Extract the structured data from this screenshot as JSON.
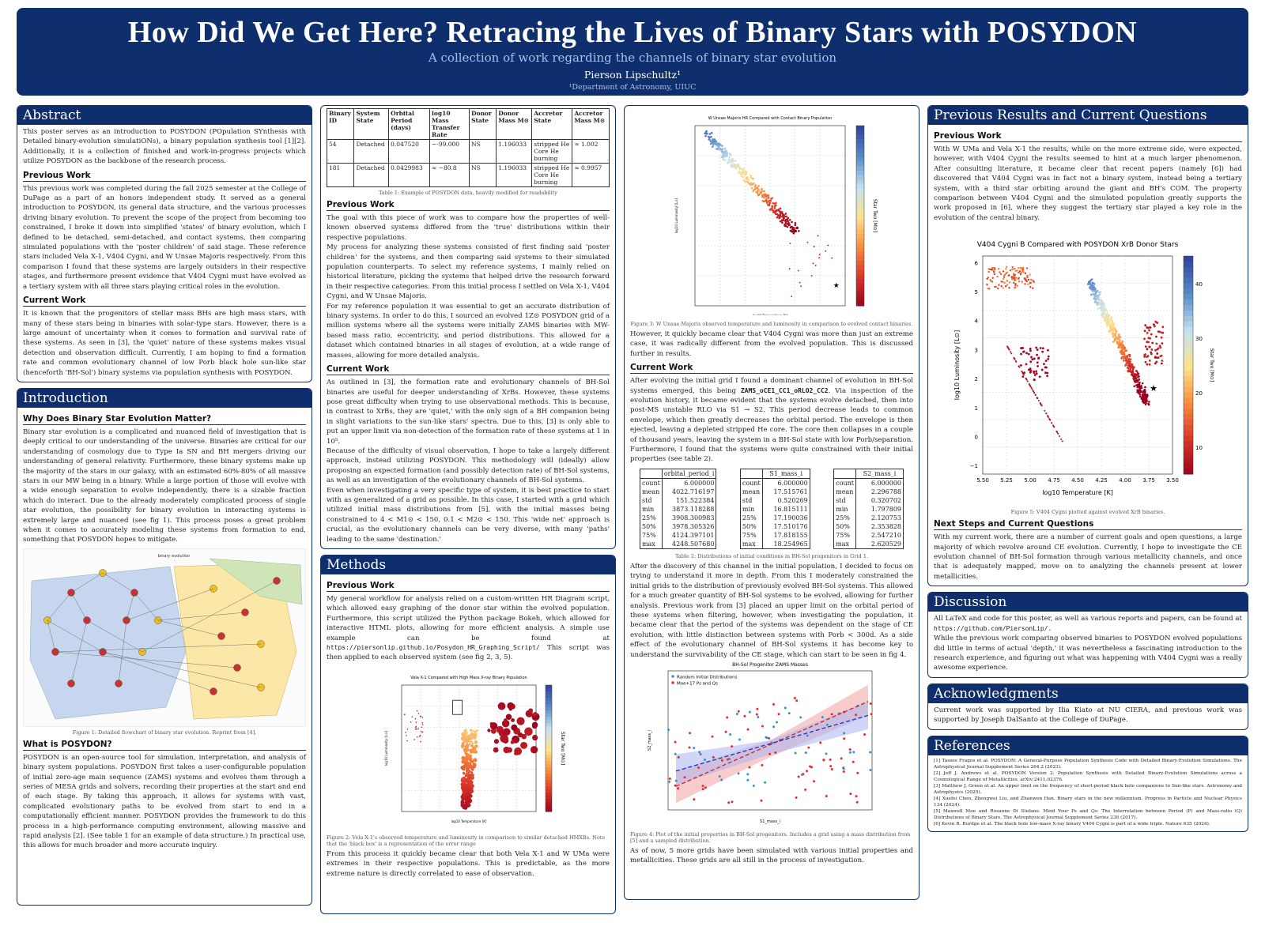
{
  "header": {
    "title": "How Did We Get Here? Retracing the Lives of Binary Stars with POSYDON",
    "subtitle": "A collection of work regarding the channels of binary star evolution",
    "author": "Pierson Lipschultz¹",
    "affiliation": "¹Department of Astronomy, UIUC"
  },
  "abstract": {
    "title": "Abstract",
    "intro": "This poster serves as an introduction to POSYDON (POpulation SYnthesis with Detailed binary-evolution simulatiONs), a binary population synthesis tool [1][2]. Additionally, it is a collection of finished and work-in-progress projects which utilize POSYDON as the backbone of the research process.",
    "prev_h": "Previous Work",
    "prev": "This previous work was completed during the fall 2025 semester at the College of DuPage as a part of an honors independent study. It served as a general introduction to POSYDON, its general data structure, and the various processes driving binary evolution. To prevent the scope of the project from becoming too constrained, I broke it down into simplified 'states' of binary evolution, which I defined to be detached, semi-detached, and contact systems, then comparing simulated populations with the 'poster children' of said stage. These reference stars included Vela X-1, V404 Cygni, and W Unsae Majoris respectively. From this comparison I found that these systems are largely outsiders in their respective stages, and furthermore present evidence that V404 Cygni must have evolved as a tertiary system with all three stars playing critical roles in the evolution.",
    "cur_h": "Current Work",
    "cur": "It is known that the progenitors of stellar mass BHs are high mass stars, with many of these stars being in binaries with solar-type stars. However, there is a large amount of uncertainty when it comes to formation and survival rate of these systems. As seen in [3], the 'quiet' nature of these systems makes visual detection and observation difficult. Currently, I am hoping to find a formation rate and common evolutionary channel of low Porb black hole sun-like star (henceforth 'BH-Sol') binary systems via population synthesis with POSYDON."
  },
  "intro": {
    "title": "Introduction",
    "h1": "Why Does Binary Star Evolution Matter?",
    "p1": "Binary star evolution is a complicated and nuanced field of investigation that is deeply critical to our understanding of the universe. Binaries are critical for our understanding of cosmology due to Type Ia SN and BH mergers driving our understanding of general relativity. Furthermore, these binary systems make up the majority of the stars in our galaxy, with an estimated 60%-80% of all massive stars in our MW being in a binary. While a large portion of those will evolve with a wide enough separation to evolve independently, there is a sizable fraction which do interact. Due to the already moderately complicated process of single star evolution, the possibility for binary evolution in interacting systems is extremely large and nuanced (see fig 1). This process poses a great problem when it comes to accurately modeling these systems from formation to end, something that POSYDON hopes to mitigate.",
    "fig1_title": "binary evolution",
    "fig1_cap": "Figure 1: Detailed flowchart of binary star evolution. Reprint from [4].",
    "h2": "What is POSYDON?",
    "p2": "POSYDON is an open-source tool for simulation, interpretation, and analysis of binary system populations. POSYDON first takes a user-configurable population of initial zero-age main sequence (ZAMS) systems and evolves them through a series of MESA grids and solvers, recording their properties at the start and end of each stage. By taking this approach, it allows for systems with vast, complicated evolutionary paths to be evolved from start to end in a computationally efficient manner. POSYDON provides the framework to do this process in a high-performance computing environment, allowing massive and rapid analysis [2]. (See table 1 for an example of data structure.) In practical use, this allows for much broader and more accurate inquiry."
  },
  "table1": {
    "headers": [
      "Binary ID",
      "System State",
      "Orbital Period (days)",
      "log10 Mass Transfer Rate",
      "Donor State",
      "Donor Mass M⊙",
      "Accretor State",
      "Accretor Mass M⊙"
    ],
    "rows": [
      [
        "54",
        "Detached",
        "0.047520",
        "~-99.000",
        "NS",
        "1.196033",
        "stripped He Core He burning",
        "≈ 1.002"
      ],
      [
        "181",
        "Detached",
        "0.0429983",
        "≈ −80.8",
        "NS",
        "1.196033",
        "stripped He Core He burning",
        "≈ 0.9957"
      ]
    ],
    "caption": "Table 1: Example of POSYDON data, heavily modified for readability"
  },
  "col2": {
    "prev_h": "Previous Work",
    "prev1": "The goal with this piece of work was to compare how the properties of well-known observed systems differed from the 'true' distributions within their respective populations.",
    "prev2": "My process for analyzing these systems consisted of first finding said 'poster children' for the systems, and then comparing said systems to their simulated population counterparts. To select my reference systems, I mainly relied on historical literature, picking the systems that helped drive the research forward in their respective categories. From this initial process I settled on Vela X-1, V404 Cygni, and W Unsae Majoris.",
    "prev3": "For my reference population it was essential to get an accurate distribution of binary systems. In order to do this, I sourced an evolved 1Z⊙ POSYDON grid of a million systems where all the systems were initially ZAMS binaries with MW-based mass ratio, eccentricity, and period distributions. This allowed for a dataset which contained binaries in all stages of evolution, at a wide range of masses, allowing for more detailed analysis.",
    "cur_h": "Current Work",
    "cur1": "As outlined in [3], the formation rate and evolutionary channels of BH-Sol binaries are useful for deeper understanding of XrBs. However, these systems pose great difficulty when trying to use observational methods. This is because, in contrast to XrBs, they are 'quiet,' with the only sign of a BH companion being in slight variations to the sun-like stars' spectra. Due to this, [3] is only able to put an upper limit via non-detection of the formation rate of these systems at 1 in 10⁵.",
    "cur2": "Because of the difficulty of visual observation, I hope to take a largely different approach, instead utilizing POSYDON. This methodology will (ideally) allow proposing an expected formation (and possibly detection rate) of BH-Sol systems, as well as an investigation of the evolutionary channels of BH-Sol systems.",
    "cur3": "Even when investigating a very specific type of system, it is best practice to start with as generalized of a grid as possible. In this case, I started with a grid which utilized initial mass distributions from [5], with the initial masses being constrained to 4 < M1⊙ < 150, 0.1 < M2⊙ < 150. This 'wide net' approach is crucial, as the evolutionary channels can be very diverse, with many 'paths' leading to the same 'destination.'"
  },
  "methods": {
    "title": "Methods",
    "prev_h": "Previous Work",
    "p1a": "My general workflow for analysis relied on a custom-written HR Diagram script, which allowed easy graphing of the donor star within the evolved population. Furthermore, this script utilized the Python package Bokeh, which allowed for interactive HTML plots, allowing for more efficient analysis. A simple use example can be found at",
    "url": "https://piersonlip.github.io/Posydon_HR_Graphing_Script/",
    "p1b": "This script was then applied to each observed system (see fig 2, 3, 5).",
    "fig2_title": "Vela X-1 Compared with High Mass X-ray Binary Population",
    "fig2_cap": "Figure 2: Vela X-1's observed temperature and luminosity in comparison to similar detached HMXBs. Note that the 'black box' is a representation of the error range",
    "p2": "From this process it quickly became clear that both Vela X-1 and W UMa were extremes in their respective populations. This is predictable, as the more extreme nature is directly correlated to ease of observation."
  },
  "col3": {
    "fig3_title": "W Unsae Majoris HR Compared with Contact Binary Population",
    "fig3_cap": "Figure 3: W Unsae Majoris observed temperature and luminosity in comparison to evolved contact binaries.",
    "p1": "However, it quickly became clear that V404 Cygni was more than just an extreme case, it was radically different from the evolved population. This is discussed further in results.",
    "cur_h": "Current Work",
    "p2a": "After evolving the initial grid I found a dominant channel of evolution in BH-Sol systems emerged, this being",
    "channel": "ZAMS_oCE1_CC1_oRLO2_CC2",
    "p2b": ". Via inspection of the evolution history, it became evident that the systems evolve detached, then into post-MS unstable RLO via S1 → S2. This period decrease leads to common envelope, which then greatly decreases the orbital period. The envelope is then ejected, leaving a depleted stripped He core. The core then collapses in a couple of thousand years, leaving the system in a BH-Sol state with low Porb/separation. Furthermore, I found that the systems were quite constrained with their initial properties (see table 2).",
    "t2_caption": "Table 2: Distributions of initial conditions in BH-Sol progenitors in Grid 1.",
    "p3": "After the discovery of this channel in the initial population, I decided to focus on trying to understand it more in depth. From this I moderately constrained the initial grids to the distribution of previously evolved BH-Sol systems. This allowed for a much greater quantity of BH-Sol systems to be evolved, allowing for further analysis. Previous work from [3] placed an upper limit on the orbital period of these systems when filtering, however, when investigating the population, it became clear that the period of the systems was dependent on the stage of CE evolution, with little distinction between systems with Porb < 300d. As a side effect of the evolutionary channel of BH-Sol systems it has become key to understand the survivability of the CE stage, which can start to be seen in fig 4.",
    "fig4_title": "BH-Sol Progenitor ZAMS Masses",
    "fig4_cap": "Figure 4: Plot of the initial properties in BH-Sol progenitors. Includes a grid using a mass distribution from [5] and a sampled distribution.",
    "p4": "As of now, 5 more grids have been simulated with various initial properties and metallicities. These grids are all still in the process of investigation."
  },
  "table2": {
    "labels": [
      "count",
      "mean",
      "std",
      "min",
      "25%",
      "50%",
      "75%",
      "max"
    ],
    "cols": [
      {
        "name": "orbital_period_i",
        "vals": [
          "6.000000",
          "4022.716197",
          "151.522384",
          "3873.118288",
          "3908.300983",
          "3978.305326",
          "4124.397101",
          "4248.507680"
        ]
      },
      {
        "name": "S1_mass_i",
        "vals": [
          "6.000000",
          "17.515761",
          "0.520269",
          "16.815111",
          "17.190036",
          "17.510176",
          "17.818155",
          "18.254965"
        ]
      },
      {
        "name": "S2_mass_i",
        "vals": [
          "6.000000",
          "2.296788",
          "0.320702",
          "1.797809",
          "2.120753",
          "2.353828",
          "2.547210",
          "2.620529"
        ]
      }
    ]
  },
  "results": {
    "title": "Previous Results and Current Questions",
    "prev_h": "Previous Work",
    "p1": "With W UMa and Vela X-1 the results, while on the more extreme side, were expected, however, with V404 Cygni the results seemed to hint at a much larger phenomenon. After consulting literature, it became clear that recent papers (namely [6]) had discovered that V404 Cygni was in fact not a binary system, instead being a tertiary system, with a third star orbiting around the giant and BH's COM. The property comparison between V404 Cygni and the simulated population greatly supports the work proposed in [6], where they suggest the tertiary star played a key role in the evolution of the central binary.",
    "fig5_title": "V404 Cygni B Compared with POSYDON XrB Donor Stars",
    "fig5_cap": "Figure 5: V404 Cygni plotted against evolved XrB binaries.",
    "next_h": "Next Steps and Current Questions",
    "p2": "With my current work, there are a number of current goals and open questions, a large majority of which revolve around CE evolution. Currently, I hope to investigate the CE evolution channel of BH-Sol formation through various metallicity channels, and once that is adequately mapped, move on to analyzing the channels present at lower metallicities."
  },
  "discussion": {
    "title": "Discussion",
    "p1a": "All LaTeX and code for this poster, as well as various reports and papers, can be found at",
    "url": "https://github.com/PiersonLip/.",
    "p2": "While the previous work comparing observed binaries to POSYDON evolved populations did little in terms of actual 'depth,' it was nevertheless a fascinating introduction to the research experience, and figuring out what was happening with V404 Cygni was a really awesome experience."
  },
  "ack": {
    "title": "Acknowledgments",
    "p": "Current work was supported by Ilia Kiato at NU CIERA, and previous work was supported by Joseph DalSanto at the College of DuPage."
  },
  "refs": {
    "title": "References",
    "items": [
      "[1] Tassos Fragos et al. POSYDON: A General-Purpose Population Synthesis Code with Detailed Binary-Evolution Simulations. The Astrophysical Journal Supplement Series 264.2 (2023).",
      "[2] Jeff J. Andrews et al. POSYDON Version 2: Population Synthesis with Detailed Binary-Evolution Simulations across a Cosmological Range of Metallicities. arXiv:2411.02376.",
      "[3] Matthew J. Green et al. An upper limit on the frequency of short-period black hole companions to Sun-like stars. Astronomy and Astrophysics (2025).",
      "[4] Xuefei Chen, Zhengwei Liu, and Zhanwen Han. Binary stars in the new millennium. Progress in Particle and Nuclear Physics 134 (2024).",
      "[5] Maxwell Moe and Rosanne Di Stefano. Mind Your Ps and Qs: The Interrelation between Period (P) and Mass-ratio (Q) Distributions of Binary Stars. The Astrophysical Journal Supplement Series 230 (2017).",
      "[6] Kevin B. Burdge et al. The black hole low-mass X-ray binary V404 Cygni is part of a wide triple. Nature 635 (2024)."
    ]
  },
  "chart_data": [
    {
      "type": "scatter",
      "title": "Vela X-1 Compared with High Mass X-ray Binary Population",
      "xlabel": "log10 Temperature [K]",
      "ylabel": "log10 Luminosity [L⊙]",
      "colorbar": "Star Two [M⊙]",
      "xlim": [
        5.25,
        3.5
      ],
      "ylim": [
        3.0,
        6.6
      ]
    },
    {
      "type": "scatter",
      "title": "W Unsae Majoris HR Compared with Contact Binary Population",
      "xlabel": "log10 Temperature [K]",
      "ylabel": "log10 Luminosity [L⊙]",
      "colorbar": "Star Two [M⊙]",
      "xlim": [
        4.5,
        3.5
      ],
      "ylim": [
        -0.2,
        6.2
      ]
    },
    {
      "type": "scatter",
      "title": "BH-Sol Progenitor ZAMS Masses",
      "xlabel": "S1_mass_i",
      "ylabel": "S2_mass_i",
      "legend": [
        "Random Initial Distributions",
        "Moe+17 Ps and Qs"
      ],
      "xlim": [
        14.8,
        19.4
      ],
      "ylim": [
        1.45,
        3.0
      ]
    },
    {
      "type": "scatter",
      "title": "V404 Cygni B Compared with POSYDON XrB Donor Stars",
      "xlabel": "log10 Temperature [K]",
      "ylabel": "log10 Luminosity [L⊙]",
      "colorbar": "Star Two [M⊙]",
      "xlim": [
        5.5,
        3.5
      ],
      "ylim": [
        -1.6,
        6.4
      ],
      "xticks": [
        "5.50",
        "5.25",
        "5.00",
        "4.75",
        "4.50",
        "4.25",
        "4.00",
        "3.75",
        "3.50"
      ],
      "yticks": [
        "6",
        "5",
        "4",
        "3",
        "2",
        "1",
        "0",
        "−1"
      ],
      "cticks": [
        "40",
        "30",
        "20",
        "10"
      ]
    }
  ]
}
